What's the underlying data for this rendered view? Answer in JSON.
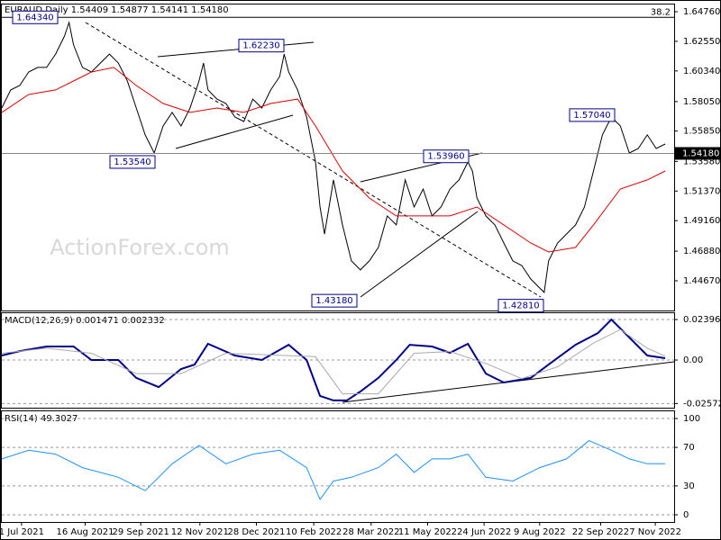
{
  "chart_data": [
    {
      "type": "line",
      "title": "EURAUD,Daily  1.54409 1.54877 1.54141 1.54180",
      "watermark": "ActionForex.com",
      "xlim": [
        0,
        150
      ],
      "ylim": [
        1.4245,
        1.653
      ],
      "grid": false,
      "yticks": [
        {
          "value": 1.6476,
          "label": "1.64760"
        },
        {
          "value": 1.6255,
          "label": "1.62550"
        },
        {
          "value": 1.6034,
          "label": "1.60340"
        },
        {
          "value": 1.5805,
          "label": "1.58050"
        },
        {
          "value": 1.5585,
          "label": "1.55850"
        },
        {
          "value": 1.5358,
          "label": "1.53580"
        },
        {
          "value": 1.5137,
          "label": "1.51370"
        },
        {
          "value": 1.4916,
          "label": "1.49160"
        },
        {
          "value": 1.4688,
          "label": "1.46880"
        },
        {
          "value": 1.4467,
          "label": "1.44670"
        }
      ],
      "series": [
        {
          "color": "#000000",
          "x": [
            0,
            2,
            4,
            6,
            8,
            10,
            12,
            14,
            15,
            16,
            18,
            20,
            22,
            24,
            26,
            28,
            30,
            32,
            34,
            36,
            38,
            40,
            42,
            44,
            45,
            46,
            48,
            50,
            52,
            54,
            56,
            58,
            60,
            62,
            63,
            64,
            66,
            68,
            70,
            71,
            72,
            73,
            74,
            76,
            78,
            80,
            82,
            84,
            86,
            88,
            90,
            92,
            94,
            96,
            98,
            100,
            102,
            104,
            105,
            106,
            108,
            110,
            112,
            114,
            116,
            118,
            120,
            121,
            122,
            124,
            126,
            128,
            130,
            132,
            134,
            136,
            138,
            140,
            142,
            144,
            146,
            148
          ],
          "values": [
            1.5757,
            1.5892,
            1.5925,
            1.6026,
            1.606,
            1.606,
            1.616,
            1.6295,
            1.6396,
            1.6228,
            1.606,
            1.6026,
            1.6093,
            1.616,
            1.6093,
            1.5959,
            1.5757,
            1.5556,
            1.5421,
            1.5623,
            1.5724,
            1.5623,
            1.5757,
            1.5959,
            1.6093,
            1.5892,
            1.5824,
            1.5791,
            1.569,
            1.5656,
            1.5824,
            1.5757,
            1.5892,
            1.5992,
            1.616,
            1.6026,
            1.5892,
            1.569,
            1.5354,
            1.5018,
            1.4816,
            1.5018,
            1.522,
            1.4884,
            1.4615,
            1.4548,
            1.4615,
            1.4716,
            1.4951,
            1.4884,
            1.522,
            1.5018,
            1.5152,
            1.4951,
            1.5018,
            1.5152,
            1.522,
            1.5354,
            1.5287,
            1.5085,
            1.4951,
            1.4884,
            1.4749,
            1.4615,
            1.4581,
            1.448,
            1.4413,
            1.438,
            1.4615,
            1.4749,
            1.4816,
            1.4884,
            1.5018,
            1.5287,
            1.5556,
            1.569,
            1.5623,
            1.5421,
            1.5455,
            1.5556,
            1.5455,
            1.5488
          ]
        },
        {
          "color": "#dd0000",
          "x": [
            0,
            6,
            12,
            16,
            20,
            25,
            30,
            36,
            42,
            48,
            54,
            60,
            66,
            70,
            76,
            82,
            88,
            94,
            100,
            106,
            112,
            118,
            122,
            128,
            132,
            138,
            144,
            148
          ],
          "values": [
            1.5724,
            1.5858,
            1.5892,
            1.5959,
            1.6026,
            1.606,
            1.5925,
            1.5791,
            1.5724,
            1.5757,
            1.5724,
            1.5791,
            1.5824,
            1.5623,
            1.5287,
            1.5085,
            1.4951,
            1.4951,
            1.4951,
            1.5018,
            1.4884,
            1.4749,
            1.4682,
            1.4716,
            1.4884,
            1.5152,
            1.522,
            1.5287
          ]
        }
      ],
      "annotations": [
        {
          "value": 1.6434,
          "label": "1.64340"
        },
        {
          "value": 1.6223,
          "label": "1.62230"
        },
        {
          "value": 1.5354,
          "label": "1.53540"
        },
        {
          "value": 1.5396,
          "label": "1.53960"
        },
        {
          "value": 1.5704,
          "label": "1.57040"
        },
        {
          "value": 1.4318,
          "label": "1.43180"
        },
        {
          "value": 1.4281,
          "label": "1.42810"
        }
      ],
      "fib_level": {
        "value": 1.6434,
        "label": "38.2"
      },
      "last_price": {
        "value": 1.5418,
        "label": "1.54180",
        "color": "#000000"
      }
    },
    {
      "type": "line",
      "title": "MACD(12,26,9) 0.001471 0.002332",
      "xlim": [
        0,
        150
      ],
      "ylim": [
        -0.0282,
        0.0277
      ],
      "grid": true,
      "yticks": [
        0.023963,
        {
          "value": 0,
          "label": "0.00"
        },
        -0.025726
      ],
      "series": [
        {
          "color": "#00008b",
          "width": 2,
          "x": [
            0,
            4,
            10,
            16,
            20,
            26,
            30,
            35,
            40,
            43,
            46,
            52,
            58,
            64,
            68,
            71,
            74,
            77,
            80,
            84,
            88,
            91,
            96,
            100,
            104,
            108,
            112,
            118,
            122,
            128,
            133,
            136,
            140,
            144,
            148
          ],
          "values": [
            0.0027,
            0.0053,
            0.008,
            0.008,
            0,
            0,
            -0.0106,
            -0.016,
            -0.0053,
            -0.0027,
            0.0096,
            0.0027,
            0,
            0.009,
            0,
            -0.0213,
            -0.0239,
            -0.0239,
            -0.0186,
            -0.0106,
            0,
            0.009,
            0.008,
            0.0043,
            0.0096,
            -0.008,
            -0.0133,
            -0.0106,
            -0.0027,
            0.009,
            0.016,
            0.0239,
            0.0133,
            0.0027,
            0.0011
          ]
        },
        {
          "color": "#aaaaaa",
          "width": 1,
          "x": [
            0,
            10,
            20,
            30,
            40,
            50,
            60,
            70,
            76,
            84,
            92,
            100,
            108,
            116,
            124,
            132,
            138,
            144,
            148
          ],
          "values": [
            0.004,
            0.007,
            0.004,
            -0.008,
            -0.008,
            0.004,
            0.003,
            0.002,
            -0.02,
            -0.02,
            0.004,
            0.005,
            -0.002,
            -0.011,
            -0.004,
            0.01,
            0.018,
            0.007,
            0.0023
          ]
        }
      ]
    },
    {
      "type": "line",
      "title": "RSI(14) 49.3027",
      "xlim": [
        0,
        150
      ],
      "ylim": [
        -7.5,
        107.5
      ],
      "grid": true,
      "yticks": [
        100,
        70,
        30,
        0
      ],
      "xticks": [
        {
          "value": 4.4,
          "label": "1 Jul 2021"
        },
        {
          "value": 18.6,
          "label": "16 Aug 2021"
        },
        {
          "value": 31,
          "label": "29 Sep 2021"
        },
        {
          "value": 44.2,
          "label": "12 Nov 2021"
        },
        {
          "value": 56.8,
          "label": "28 Dec 2021"
        },
        {
          "value": 69.6,
          "label": "10 Feb 2022"
        },
        {
          "value": 82.4,
          "label": "28 Mar 2022"
        },
        {
          "value": 95,
          "label": "11 May 2022"
        },
        {
          "value": 107.6,
          "label": "24 Jun 2022"
        },
        {
          "value": 120,
          "label": "9 Aug 2022"
        },
        {
          "value": 133.6,
          "label": "22 Sep 2022"
        },
        {
          "value": 145.8,
          "label": "7 Nov 2022"
        }
      ],
      "series": [
        {
          "color": "#1e90ff",
          "width": 1,
          "x": [
            0,
            6,
            12,
            18,
            26,
            32,
            38,
            44,
            50,
            56,
            62,
            68,
            71,
            74,
            78,
            84,
            88,
            92,
            96,
            100,
            104,
            108,
            114,
            120,
            126,
            131,
            136,
            140,
            144,
            148
          ],
          "values": [
            58,
            67,
            63,
            49,
            39,
            25,
            53,
            72,
            53,
            63,
            67,
            49,
            16,
            35,
            39,
            49,
            63,
            44,
            58,
            58,
            63,
            39,
            35,
            49,
            58,
            77,
            67,
            58,
            53,
            53
          ]
        }
      ]
    }
  ]
}
